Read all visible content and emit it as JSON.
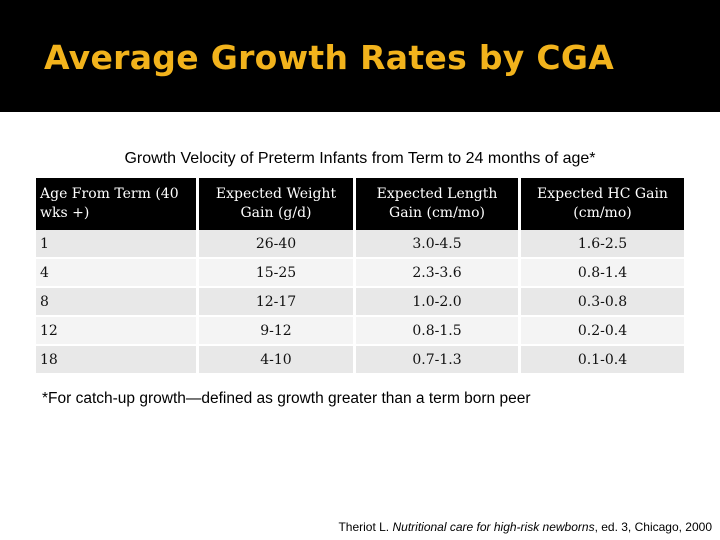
{
  "slide": {
    "title": "Average Growth Rates by CGA",
    "colors": {
      "title": "#f2b31c",
      "header_bg": "#000000",
      "row_a": "#e8e8e8",
      "row_b": "#f4f4f4"
    }
  },
  "table": {
    "caption": "Growth Velocity of Preterm Infants from Term to 24 months of age*",
    "headers": [
      "Age From Term (40 wks +)",
      "Expected Weight Gain (g/d)",
      "Expected Length Gain (cm/mo)",
      "Expected HC Gain (cm/mo)"
    ],
    "rows": [
      [
        "1",
        "26-40",
        "3.0-4.5",
        "1.6-2.5"
      ],
      [
        "4",
        "15-25",
        "2.3-3.6",
        "0.8-1.4"
      ],
      [
        "8",
        "12-17",
        "1.0-2.0",
        "0.3-0.8"
      ],
      [
        "12",
        "9-12",
        "0.8-1.5",
        "0.2-0.4"
      ],
      [
        "18",
        "4-10",
        "0.7-1.3",
        "0.1-0.4"
      ]
    ]
  },
  "footnote": "*For catch-up growth—defined as growth greater than a term born peer",
  "citation": {
    "prefix": "Theriot L. ",
    "italic": "Nutritional care for high-risk newborns",
    "suffix": ", ed. 3, Chicago, 2000"
  }
}
